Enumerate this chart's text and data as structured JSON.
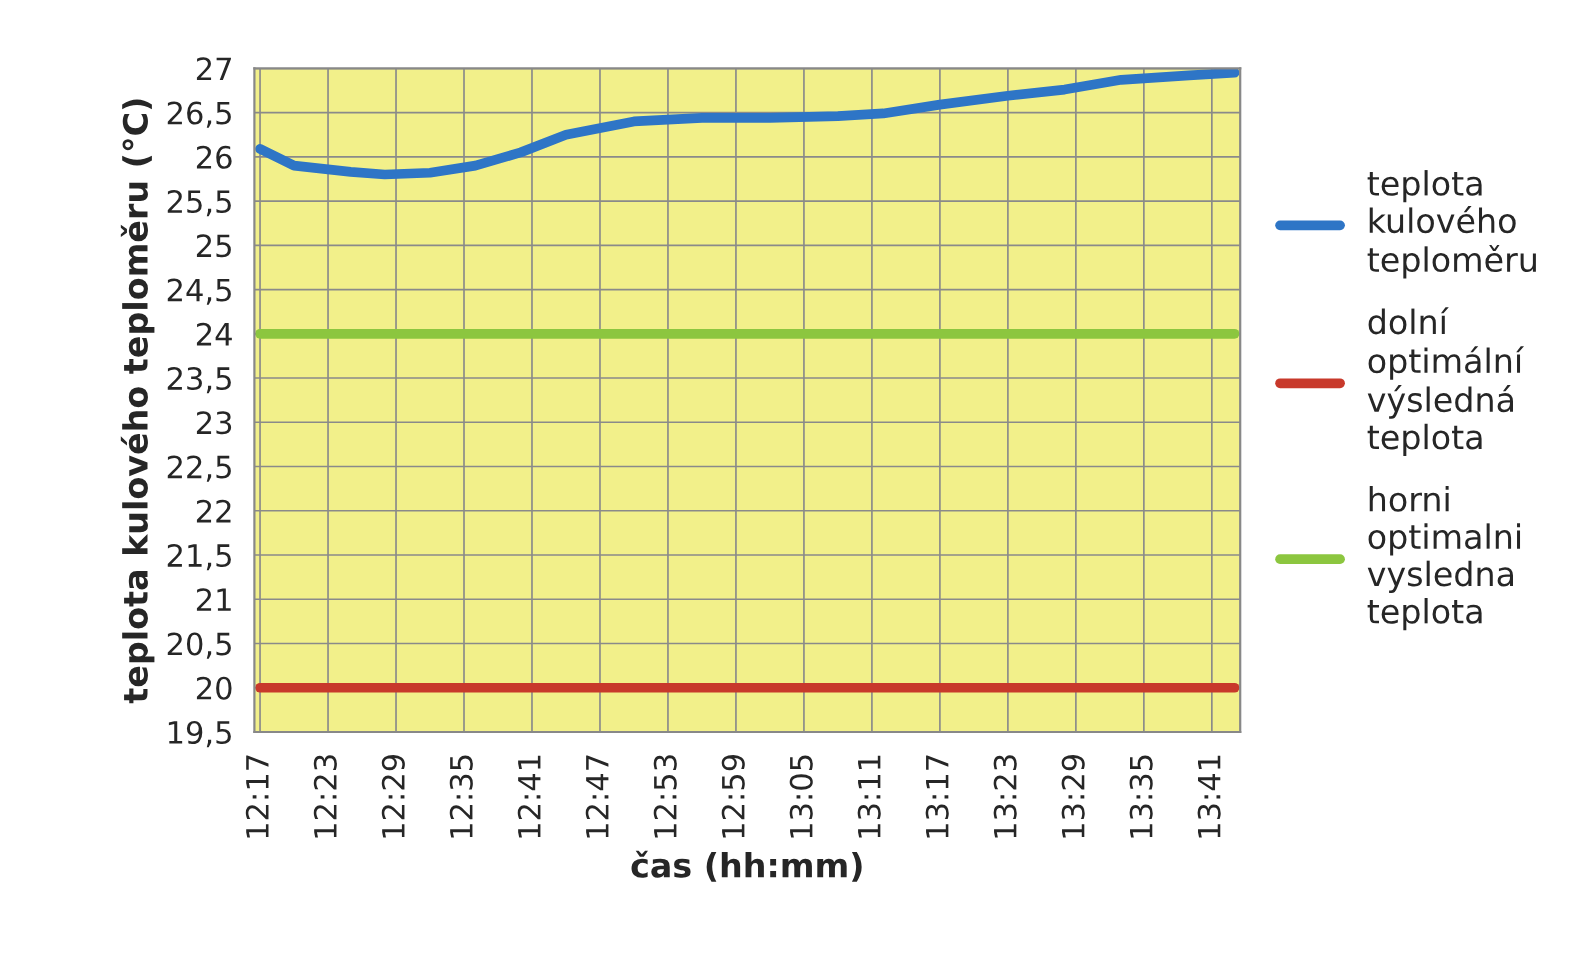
{
  "chart_data": {
    "type": "line",
    "xlabel": "čas (hh:mm)",
    "ylabel": "teplota kulového teploměru (°C)",
    "series": [
      {
        "name": "teplota kulového teploměru",
        "color": "#2e75c6",
        "x": [
          12.2833,
          12.3333,
          12.4167,
          12.4667,
          12.5333,
          12.6,
          12.6667,
          12.7333,
          12.8333,
          12.9333,
          13.0333,
          13.1333,
          13.2,
          13.2833,
          13.3833,
          13.4667,
          13.55,
          13.65,
          13.7167
        ],
        "values": [
          26.09,
          25.9,
          25.83,
          25.8,
          25.82,
          25.9,
          26.05,
          26.25,
          26.4,
          26.44,
          26.44,
          26.46,
          26.49,
          26.59,
          26.69,
          26.76,
          26.87,
          26.92,
          26.95
        ]
      },
      {
        "name": "dolní optimální výsledná teplota",
        "color": "#c8392b",
        "x": [
          12.2833,
          13.7167
        ],
        "values": [
          20,
          20
        ]
      },
      {
        "name": "horni optimalni vysledna teplota",
        "color": "#8cc63f",
        "x": [
          12.2833,
          13.7167
        ],
        "values": [
          24,
          24
        ]
      }
    ],
    "xlim": [
      12.275,
      13.725
    ],
    "xticks": [
      {
        "value": 12.2833,
        "label": "12:17"
      },
      {
        "value": 12.3833,
        "label": "12:23"
      },
      {
        "value": 12.4833,
        "label": "12:29"
      },
      {
        "value": 12.5833,
        "label": "12:35"
      },
      {
        "value": 12.6833,
        "label": "12:41"
      },
      {
        "value": 12.7833,
        "label": "12:47"
      },
      {
        "value": 12.8833,
        "label": "12:53"
      },
      {
        "value": 12.9833,
        "label": "12:59"
      },
      {
        "value": 13.0833,
        "label": "13:05"
      },
      {
        "value": 13.1833,
        "label": "13:11"
      },
      {
        "value": 13.2833,
        "label": "13:17"
      },
      {
        "value": 13.3833,
        "label": "13:23"
      },
      {
        "value": 13.4833,
        "label": "13:29"
      },
      {
        "value": 13.5833,
        "label": "13:35"
      },
      {
        "value": 13.6833,
        "label": "13:41"
      }
    ],
    "ylim": [
      19.5,
      27
    ],
    "yticks": [
      {
        "value": 19.5,
        "label": "19,5"
      },
      20,
      {
        "value": 20.5,
        "label": "20,5"
      },
      21,
      {
        "value": 21.5,
        "label": "21,5"
      },
      22,
      {
        "value": 22.5,
        "label": "22,5"
      },
      23,
      {
        "value": 23.5,
        "label": "23,5"
      },
      24,
      {
        "value": 24.5,
        "label": "24,5"
      },
      25,
      {
        "value": 25.5,
        "label": "25,5"
      },
      26,
      {
        "value": 26.5,
        "label": "26,5"
      },
      27
    ],
    "grid": true,
    "legend": "right",
    "marker": "none",
    "line_style": "solid"
  }
}
